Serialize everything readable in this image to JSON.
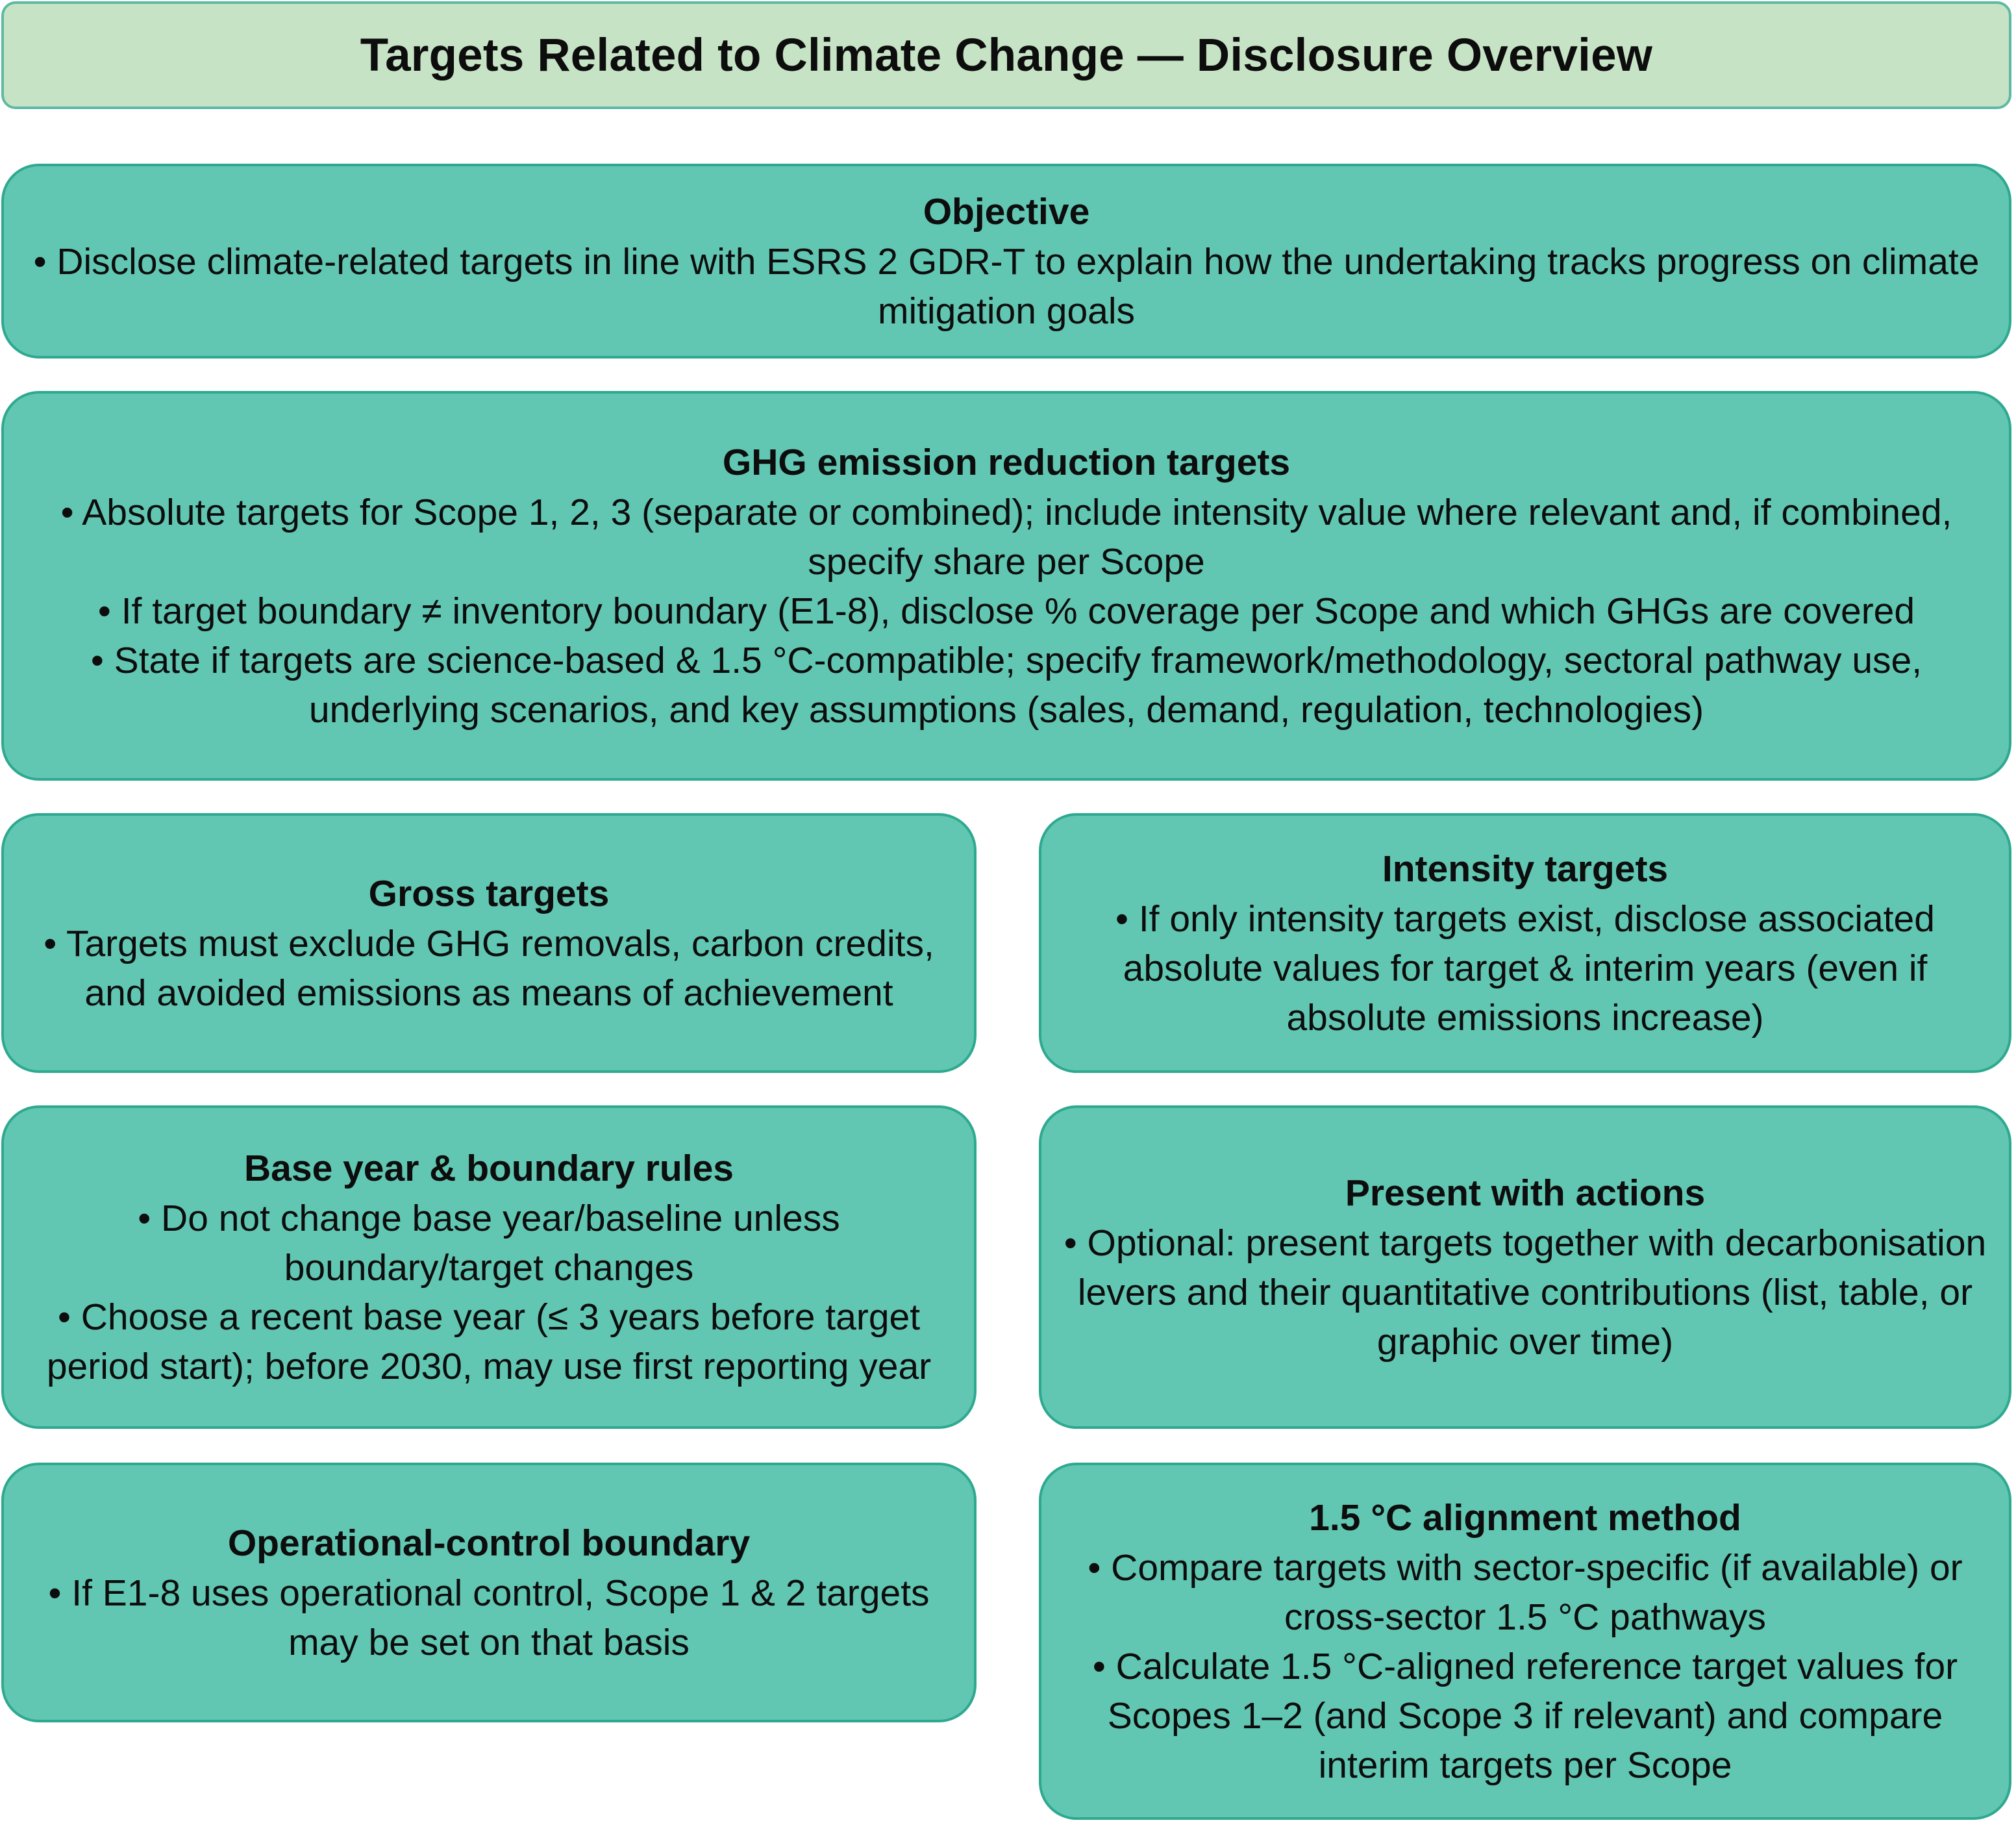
{
  "title": "Targets Related to Climate Change — Disclosure Overview",
  "colors": {
    "title_background": "#c6e3c5",
    "title_border": "#5fb9a4",
    "card_background": "#61c7b2",
    "card_border": "#2ea98f"
  },
  "objective": {
    "heading": "Objective",
    "bullets": [
      "• Disclose climate-related targets in line with ESRS 2 GDR-T to explain how the undertaking tracks progress on climate mitigation goals"
    ]
  },
  "ghg_targets": {
    "heading": "GHG emission reduction targets",
    "bullets": [
      "• Absolute targets for Scope 1, 2, 3 (separate or combined); include intensity value where relevant and, if combined, specify share per Scope",
      "• If target boundary ≠ inventory boundary (E1-8), disclose % coverage per Scope and which GHGs are covered",
      "• State if targets are science-based & 1.5 °C-compatible; specify framework/methodology, sectoral pathway use, underlying scenarios, and key assumptions (sales, demand, regulation, technologies)"
    ]
  },
  "gross_targets": {
    "heading": "Gross targets",
    "bullets": [
      "• Targets must exclude GHG removals, carbon credits, and avoided emissions as means of achievement"
    ]
  },
  "intensity_targets": {
    "heading": "Intensity targets",
    "bullets": [
      "• If only intensity targets exist, disclose associated absolute values for target & interim years (even if absolute emissions increase)"
    ]
  },
  "base_year": {
    "heading": "Base year & boundary rules",
    "bullets": [
      "• Do not change base year/baseline unless boundary/target changes",
      "• Choose a recent base year (≤ 3 years before target period start); before 2030, may use first reporting year"
    ]
  },
  "present_actions": {
    "heading": "Present with actions",
    "bullets": [
      "• Optional: present targets together with decarbonisation levers and their quantitative contributions (list, table, or graphic over time)"
    ]
  },
  "operational_control": {
    "heading": "Operational-control boundary",
    "bullets": [
      "• If E1-8 uses operational control, Scope 1 & 2 targets may be set on that basis"
    ]
  },
  "alignment_method": {
    "heading": "1.5 °C alignment method",
    "bullets": [
      "• Compare targets with sector-specific (if available) or cross-sector 1.5 °C pathways",
      "• Calculate 1.5 °C-aligned reference target values for Scopes 1–2 (and Scope 3 if relevant) and compare interim targets per Scope"
    ]
  }
}
